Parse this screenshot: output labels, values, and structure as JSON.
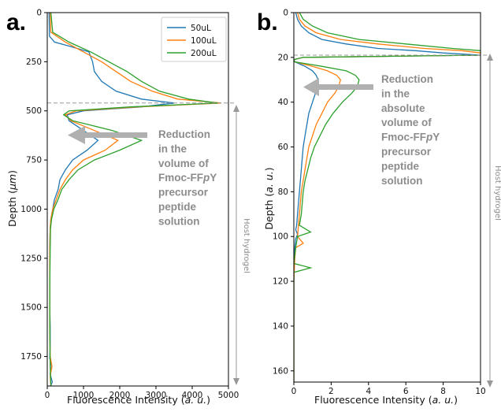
{
  "figure": {
    "panels": [
      {
        "letter": "a.",
        "xlabel_main": "Fluorescence Intensity (",
        "xlabel_unit": "a. u.",
        "xlabel_end": ")",
        "ylabel_main": "Depth (",
        "ylabel_unit": "μm",
        "ylabel_end": ")",
        "host_label": "Host hydrogel",
        "annotation": [
          "Reduction",
          "in the",
          "volume of",
          "Fmoc-FFpY",
          "precursor",
          "peptide",
          "solution"
        ]
      },
      {
        "letter": "b.",
        "xlabel_main": "Fluorescence Intensity (",
        "xlabel_unit": "a. u.",
        "xlabel_end": ")",
        "ylabel_main": "Depth (",
        "ylabel_unit": "a. u.",
        "ylabel_end": ")",
        "host_label": "Host hydrogel",
        "annotation": [
          "Reduction",
          "in the",
          "absolute",
          "volume of",
          "Fmoc-FFpY",
          "precursor",
          "peptide",
          "solution"
        ]
      }
    ],
    "legend": [
      "50uL",
      "100uL",
      "200uL"
    ]
  },
  "colors": {
    "50uL": "#1f77b4",
    "100uL": "#ff7f0e",
    "200uL": "#2ca02c",
    "annotation": "#8c8c8c",
    "dashed": "#999999"
  },
  "chart_data": [
    {
      "type": "line",
      "orientation": "vertical (depth on inverted y-axis)",
      "xlabel": "Fluorescence Intensity (a. u.)",
      "ylabel": "Depth (μm)",
      "xlim": [
        0,
        5000
      ],
      "ylim": [
        1900,
        0
      ],
      "xticks": [
        0,
        1000,
        2000,
        3000,
        4000,
        5000
      ],
      "yticks": [
        0,
        250,
        500,
        750,
        1000,
        1250,
        1500,
        1750
      ],
      "interface_depth": 460,
      "legend_position": "top-right",
      "series": [
        {
          "name": "50uL",
          "depth": [
            0,
            120,
            150,
            175,
            200,
            250,
            300,
            350,
            400,
            440,
            460,
            480,
            500,
            520,
            550,
            600,
            650,
            700,
            750,
            800,
            850,
            900,
            950,
            1000,
            1050,
            1100,
            1200,
            1300,
            1400,
            1500,
            1600,
            1700,
            1760,
            1800,
            1840,
            1880,
            1900
          ],
          "intensity": [
            50,
            60,
            200,
            700,
            1150,
            1250,
            1300,
            1500,
            1900,
            2600,
            3500,
            2600,
            1000,
            550,
            600,
            1000,
            1400,
            1100,
            700,
            500,
            350,
            300,
            200,
            150,
            100,
            80,
            70,
            70,
            70,
            70,
            80,
            80,
            70,
            120,
            80,
            140,
            90
          ]
        },
        {
          "name": "100uL",
          "depth": [
            0,
            100,
            150,
            200,
            220,
            250,
            300,
            350,
            400,
            440,
            460,
            480,
            500,
            520,
            550,
            600,
            650,
            700,
            750,
            800,
            850,
            900,
            950,
            1000,
            1050,
            1100,
            1200,
            1400,
            1600,
            1750,
            1800,
            1850,
            1900
          ],
          "intensity": [
            80,
            100,
            500,
            1000,
            1200,
            1500,
            1900,
            2300,
            2900,
            3600,
            4800,
            2500,
            800,
            500,
            650,
            1300,
            1950,
            1600,
            1000,
            700,
            500,
            350,
            250,
            150,
            100,
            80,
            70,
            70,
            70,
            80,
            130,
            80,
            100
          ]
        },
        {
          "name": "200uL",
          "depth": [
            0,
            100,
            150,
            200,
            250,
            300,
            350,
            400,
            440,
            460,
            480,
            500,
            520,
            550,
            600,
            650,
            700,
            750,
            800,
            850,
            900,
            950,
            1000,
            1050,
            1100,
            1200,
            1400,
            1600,
            1800,
            1850,
            1900
          ],
          "intensity": [
            100,
            150,
            600,
            1200,
            1700,
            2200,
            2600,
            3100,
            3900,
            4700,
            2300,
            600,
            450,
            700,
            1800,
            2600,
            2000,
            1300,
            850,
            600,
            400,
            300,
            180,
            120,
            90,
            80,
            70,
            70,
            80,
            90,
            100
          ]
        }
      ]
    },
    {
      "type": "line",
      "orientation": "vertical (depth on inverted y-axis)",
      "xlabel": "Fluorescence Intensity (a. u.)",
      "ylabel": "Depth (a. u.)",
      "xlim": [
        0,
        10
      ],
      "ylim": [
        165,
        0
      ],
      "xticks": [
        0,
        2,
        4,
        6,
        8,
        10
      ],
      "yticks": [
        0,
        20,
        40,
        60,
        80,
        100,
        120,
        140,
        160
      ],
      "interface_depth": 19,
      "legend_position": "none",
      "series": [
        {
          "name": "50uL",
          "depth": [
            0,
            3,
            6,
            9,
            12,
            14,
            16,
            17,
            18,
            19,
            20,
            21,
            22,
            24,
            26,
            28,
            30,
            35,
            40,
            45,
            50,
            55,
            60,
            65,
            70,
            75,
            80,
            85,
            90,
            95,
            97,
            99,
            101,
            105,
            110,
            120,
            140,
            160,
            165
          ],
          "intensity": [
            0.1,
            0.2,
            0.4,
            0.8,
            1.5,
            2.8,
            4.5,
            6.5,
            8.0,
            10.0,
            0.5,
            0.0,
            0.05,
            0.6,
            1.0,
            1.2,
            1.3,
            1.2,
            1.0,
            0.8,
            0.7,
            0.6,
            0.5,
            0.45,
            0.4,
            0.35,
            0.3,
            0.25,
            0.2,
            0.15,
            0.1,
            0.2,
            0.1,
            0.05,
            0.02,
            0.0,
            0.0,
            0.0,
            0.0
          ]
        },
        {
          "name": "100uL",
          "depth": [
            0,
            3,
            6,
            9,
            12,
            14,
            16,
            17,
            18,
            19,
            20,
            21,
            22,
            24,
            26,
            28,
            30,
            33,
            36,
            40,
            45,
            50,
            55,
            60,
            65,
            70,
            75,
            80,
            85,
            90,
            95,
            100,
            103,
            105,
            110,
            120,
            140,
            160,
            165
          ],
          "intensity": [
            0.2,
            0.3,
            0.6,
            1.2,
            2.5,
            4.5,
            7.0,
            9.0,
            10.0,
            10.0,
            0.5,
            0.0,
            0.05,
            1.0,
            1.8,
            2.3,
            2.5,
            2.4,
            2.2,
            1.8,
            1.5,
            1.2,
            1.0,
            0.8,
            0.7,
            0.6,
            0.5,
            0.4,
            0.35,
            0.3,
            0.25,
            0.2,
            0.5,
            0.1,
            0.05,
            0.0,
            0.0,
            0.0,
            0.0
          ]
        },
        {
          "name": "200uL",
          "depth": [
            0,
            3,
            6,
            9,
            12,
            14,
            16,
            17,
            18,
            19,
            20,
            21,
            22,
            24,
            26,
            28,
            30,
            33,
            36,
            40,
            45,
            50,
            55,
            60,
            65,
            70,
            75,
            80,
            85,
            90,
            95,
            98,
            100,
            105,
            112,
            114,
            116,
            120,
            140,
            160,
            165
          ],
          "intensity": [
            0.3,
            0.5,
            1.0,
            1.8,
            3.5,
            6.0,
            8.5,
            10.0,
            10.0,
            10.0,
            0.5,
            0.0,
            0.05,
            1.5,
            2.8,
            3.3,
            3.5,
            3.4,
            3.1,
            2.6,
            2.1,
            1.7,
            1.4,
            1.1,
            0.9,
            0.75,
            0.6,
            0.5,
            0.45,
            0.4,
            0.3,
            0.9,
            0.2,
            0.1,
            0.0,
            0.9,
            0.0,
            0.0,
            0.0,
            0.0,
            0.0
          ]
        }
      ]
    }
  ]
}
